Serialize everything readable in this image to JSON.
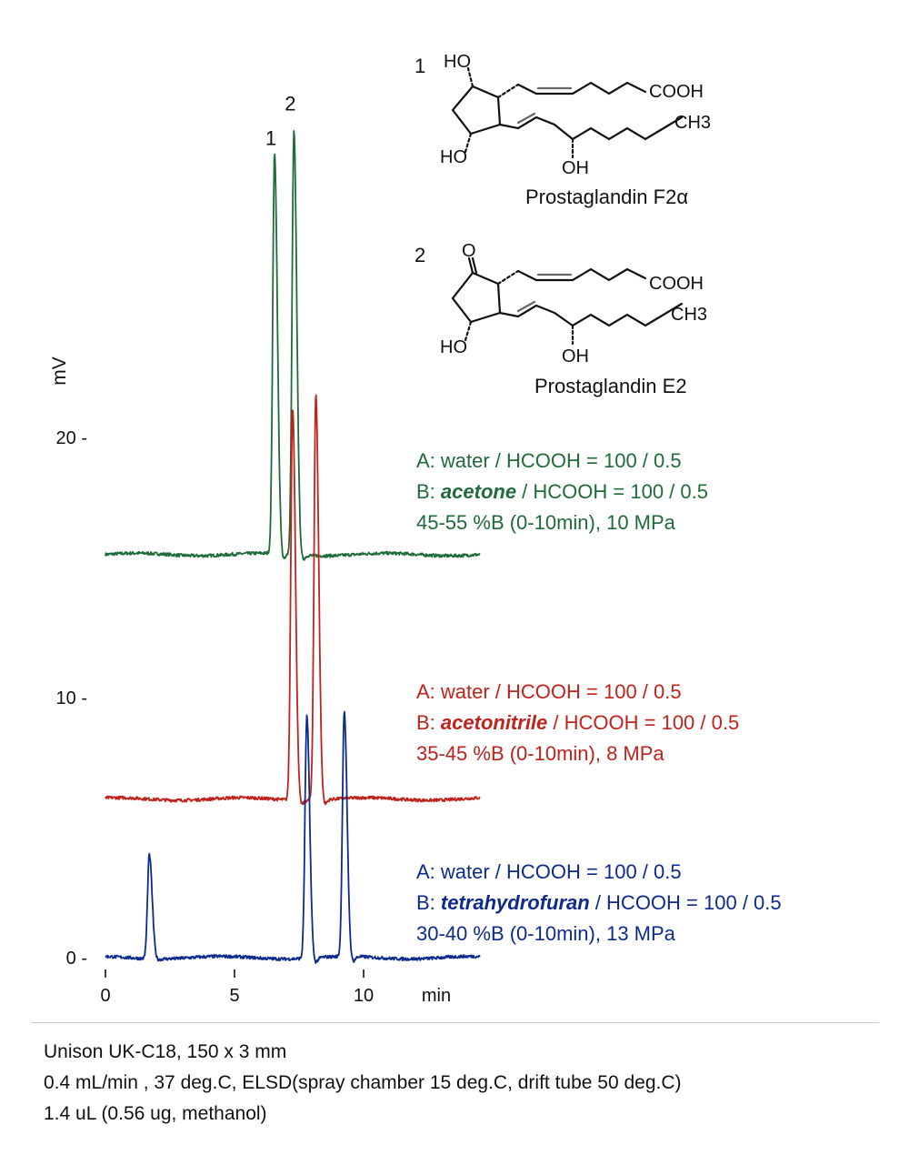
{
  "chart_data": {
    "type": "line",
    "ylabel": "mV",
    "xlabel": "min",
    "xlim": [
      0,
      14.5
    ],
    "ylim": [
      0,
      24
    ],
    "x_ticks": [
      "0",
      "5",
      "10"
    ],
    "y_ticks": [
      "0 -",
      "10 -",
      "20 -"
    ],
    "peak_labels": [
      "1",
      "2"
    ],
    "series": [
      {
        "color": "#1f6b3a",
        "baseline": 15.5,
        "peaks": [
          {
            "label": "1",
            "rt": 6.55,
            "height": 15.4
          },
          {
            "label": "2",
            "rt": 7.3,
            "height": 16.3
          }
        ]
      },
      {
        "color": "#c0231c",
        "baseline": 6.1,
        "peaks": [
          {
            "label": "1",
            "rt": 7.25,
            "height": 15.1
          },
          {
            "label": "2",
            "rt": 8.15,
            "height": 15.6
          }
        ]
      },
      {
        "color": "#0d2b8e",
        "baseline": 0.0,
        "peaks": [
          {
            "label": "",
            "rt": 1.7,
            "height": 4.0
          },
          {
            "label": "1",
            "rt": 7.8,
            "height": 9.3
          },
          {
            "label": "2",
            "rt": 9.25,
            "height": 9.4
          }
        ]
      }
    ]
  },
  "conditions": [
    {
      "color": "#1f6b3a",
      "line_a": "A: water / HCOOH = 100 / 0.5",
      "prefix_b": "B: ",
      "solvent": "acetone",
      "suffix_b": " / HCOOH = 100 / 0.5",
      "gradient": "45-55 %B (0-10min), 10 MPa"
    },
    {
      "color": "#c0231c",
      "line_a": "A: water / HCOOH = 100 / 0.5",
      "prefix_b": "B: ",
      "solvent": "acetonitrile",
      "suffix_b": " / HCOOH = 100 / 0.5",
      "gradient": "35-45 %B (0-10min), 8 MPa"
    },
    {
      "color": "#0d2b8e",
      "line_a": "A: water / HCOOH = 100 / 0.5",
      "prefix_b": "B: ",
      "solvent": "tetrahydrofuran",
      "suffix_b": " / HCOOH = 100 / 0.5",
      "gradient": "30-40 %B (0-10min), 13 MPa"
    }
  ],
  "compounds": [
    {
      "number": "1",
      "name": "Prostaglandin F2α",
      "top_group": "HO",
      "bottom_group": "HO",
      "oh_label": "OH",
      "acid_label": "COOH",
      "methyl_label": "CH3"
    },
    {
      "number": "2",
      "name": "Prostaglandin E2",
      "top_group": "O",
      "bottom_group": "HO",
      "oh_label": "OH",
      "acid_label": "COOH",
      "methyl_label": "CH3"
    }
  ],
  "footer": {
    "line1": "Unison UK-C18, 150 x 3 mm",
    "line2": "0.4 mL/min , 37 deg.C, ELSD(spray chamber 15 deg.C, drift tube 50 deg.C)",
    "line3": "1.4 uL (0.56 ug, methanol)"
  }
}
